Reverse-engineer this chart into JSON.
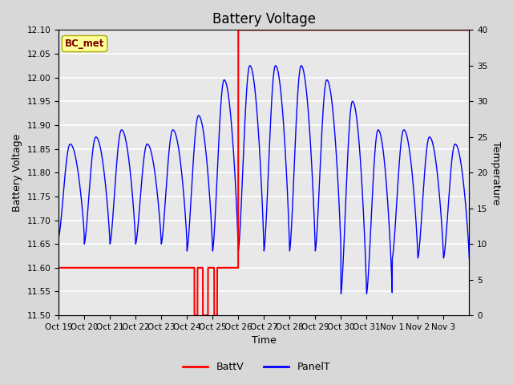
{
  "title": "Battery Voltage",
  "xlabel": "Time",
  "ylabel_left": "Battery Voltage",
  "ylabel_right": "Temperature",
  "ylim_left": [
    11.5,
    12.1
  ],
  "ylim_right": [
    0,
    40
  ],
  "yticks_left": [
    11.5,
    11.55,
    11.6,
    11.65,
    11.7,
    11.75,
    11.8,
    11.85,
    11.9,
    11.95,
    12.0,
    12.05,
    12.1
  ],
  "yticks_right": [
    0,
    5,
    10,
    15,
    20,
    25,
    30,
    35,
    40
  ],
  "fig_bg_color": "#d8d8d8",
  "plot_bg_color": "#e8e8e8",
  "grid_color": "#ffffff",
  "annotation_text": "BC_met",
  "annotation_color": "#800000",
  "annotation_bg": "#ffff99",
  "annotation_edge": "#aaaa00",
  "legend_entries": [
    "BattV",
    "PanelT"
  ],
  "batt_color": "red",
  "panel_color": "blue",
  "title_fontsize": 12,
  "axis_label_fontsize": 9,
  "tick_fontsize": 7.5,
  "total_days": 16,
  "xtick_labels": [
    "Oct 19",
    "Oct 20",
    "Oct 21",
    "Oct 22",
    "Oct 23",
    "Oct 24",
    "Oct 25",
    "Oct 26",
    "Oct 27",
    "Oct 28",
    "Oct 29",
    "Oct 30",
    "Oct 31",
    "Nov 1",
    "Nov 2",
    "Nov 3"
  ]
}
